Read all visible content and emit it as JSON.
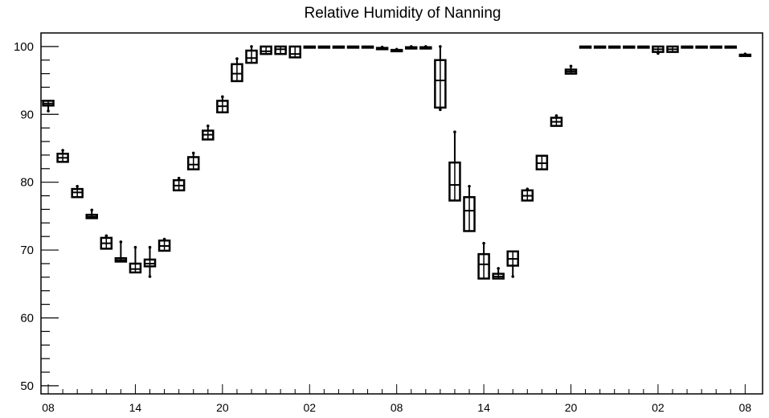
{
  "chart_data": {
    "type": "boxplot",
    "title": "Relative Humidity of Nanning",
    "xlabel": "",
    "ylabel": "",
    "ylim": [
      48.8,
      102
    ],
    "y_ticks": [
      50,
      60,
      70,
      80,
      90,
      100
    ],
    "x_ticks": [
      "08",
      "14",
      "20",
      "02",
      "08",
      "14",
      "20",
      "02",
      "08"
    ],
    "x_tick_hours": [
      0,
      6,
      12,
      18,
      24,
      30,
      36,
      42,
      48
    ],
    "x_range_hours": [
      -0.5,
      49.2
    ],
    "grid": false,
    "series": [
      {
        "hour": 0,
        "min": 90.5,
        "q1": 91.3,
        "median": 91.6,
        "q3": 92.0,
        "max": 92.0
      },
      {
        "hour": 1,
        "min": 83.0,
        "q1": 83.0,
        "median": 83.6,
        "q3": 84.2,
        "max": 84.7
      },
      {
        "hour": 2,
        "min": 77.8,
        "q1": 77.8,
        "median": 78.5,
        "q3": 79.0,
        "max": 79.4
      },
      {
        "hour": 3,
        "min": 74.7,
        "q1": 74.7,
        "median": 74.9,
        "q3": 75.2,
        "max": 75.9
      },
      {
        "hour": 4,
        "min": 70.2,
        "q1": 70.2,
        "median": 71.0,
        "q3": 71.8,
        "max": 72.1
      },
      {
        "hour": 5,
        "min": 68.3,
        "q1": 68.3,
        "median": 68.5,
        "q3": 68.8,
        "max": 71.2
      },
      {
        "hour": 6,
        "min": 66.7,
        "q1": 66.7,
        "median": 67.2,
        "q3": 68.0,
        "max": 70.4
      },
      {
        "hour": 7,
        "min": 66.1,
        "q1": 67.6,
        "median": 68.0,
        "q3": 68.6,
        "max": 70.4
      },
      {
        "hour": 8,
        "min": 69.9,
        "q1": 69.9,
        "median": 70.6,
        "q3": 71.4,
        "max": 71.6
      },
      {
        "hour": 9,
        "min": 78.8,
        "q1": 78.8,
        "median": 79.5,
        "q3": 80.3,
        "max": 80.6
      },
      {
        "hour": 10,
        "min": 81.9,
        "q1": 81.9,
        "median": 82.6,
        "q3": 83.7,
        "max": 84.3
      },
      {
        "hour": 11,
        "min": 86.3,
        "q1": 86.3,
        "median": 87.0,
        "q3": 87.6,
        "max": 88.3
      },
      {
        "hour": 12,
        "min": 90.3,
        "q1": 90.3,
        "median": 91.2,
        "q3": 92.0,
        "max": 92.6
      },
      {
        "hour": 13,
        "min": 94.9,
        "q1": 94.9,
        "median": 96.0,
        "q3": 97.4,
        "max": 98.2
      },
      {
        "hour": 14,
        "min": 97.6,
        "q1": 97.6,
        "median": 98.3,
        "q3": 99.4,
        "max": 100.0
      },
      {
        "hour": 15,
        "min": 98.9,
        "q1": 98.9,
        "median": 99.3,
        "q3": 100.0,
        "max": 100.0
      },
      {
        "hour": 16,
        "min": 98.9,
        "q1": 98.9,
        "median": 99.6,
        "q3": 100.0,
        "max": 100.0
      },
      {
        "hour": 17,
        "min": 98.4,
        "q1": 98.4,
        "median": 98.9,
        "q3": 100.0,
        "max": 100.0
      },
      {
        "hour": 18,
        "min": 100.0,
        "q1": 100.0,
        "median": 100.0,
        "q3": 100.0,
        "max": 100.0
      },
      {
        "hour": 19,
        "min": 100.0,
        "q1": 100.0,
        "median": 100.0,
        "q3": 100.0,
        "max": 100.0
      },
      {
        "hour": 20,
        "min": 100.0,
        "q1": 100.0,
        "median": 100.0,
        "q3": 100.0,
        "max": 100.0
      },
      {
        "hour": 21,
        "min": 100.0,
        "q1": 100.0,
        "median": 100.0,
        "q3": 100.0,
        "max": 100.0
      },
      {
        "hour": 22,
        "min": 100.0,
        "q1": 100.0,
        "median": 100.0,
        "q3": 100.0,
        "max": 100.0
      },
      {
        "hour": 23,
        "min": 99.6,
        "q1": 99.6,
        "median": 99.7,
        "q3": 99.8,
        "max": 99.9
      },
      {
        "hour": 24,
        "min": 99.3,
        "q1": 99.3,
        "median": 99.4,
        "q3": 99.5,
        "max": 99.6
      },
      {
        "hour": 25,
        "min": 99.7,
        "q1": 99.7,
        "median": 99.8,
        "q3": 99.9,
        "max": 100.0
      },
      {
        "hour": 26,
        "min": 99.7,
        "q1": 99.7,
        "median": 99.8,
        "q3": 99.9,
        "max": 100.0
      },
      {
        "hour": 27,
        "min": 90.7,
        "q1": 91.0,
        "median": 95.0,
        "q3": 98.0,
        "max": 100.0
      },
      {
        "hour": 28,
        "min": 77.3,
        "q1": 77.3,
        "median": 79.6,
        "q3": 82.9,
        "max": 87.4
      },
      {
        "hour": 29,
        "min": 72.8,
        "q1": 72.8,
        "median": 75.8,
        "q3": 77.8,
        "max": 79.4
      },
      {
        "hour": 30,
        "min": 65.8,
        "q1": 65.8,
        "median": 67.9,
        "q3": 69.4,
        "max": 71.0
      },
      {
        "hour": 31,
        "min": 65.8,
        "q1": 65.8,
        "median": 66.1,
        "q3": 66.5,
        "max": 67.3
      },
      {
        "hour": 32,
        "min": 66.1,
        "q1": 67.7,
        "median": 68.7,
        "q3": 69.8,
        "max": 69.8
      },
      {
        "hour": 33,
        "min": 77.3,
        "q1": 77.3,
        "median": 78.0,
        "q3": 78.8,
        "max": 79.0
      },
      {
        "hour": 34,
        "min": 81.9,
        "q1": 81.9,
        "median": 82.8,
        "q3": 83.9,
        "max": 83.9
      },
      {
        "hour": 35,
        "min": 88.3,
        "q1": 88.3,
        "median": 88.9,
        "q3": 89.5,
        "max": 89.8
      },
      {
        "hour": 36,
        "min": 96.0,
        "q1": 96.0,
        "median": 96.3,
        "q3": 96.6,
        "max": 97.1
      },
      {
        "hour": 37,
        "min": 100.0,
        "q1": 100.0,
        "median": 100.0,
        "q3": 100.0,
        "max": 100.0
      },
      {
        "hour": 38,
        "min": 100.0,
        "q1": 100.0,
        "median": 100.0,
        "q3": 100.0,
        "max": 100.0
      },
      {
        "hour": 39,
        "min": 100.0,
        "q1": 100.0,
        "median": 100.0,
        "q3": 100.0,
        "max": 100.0
      },
      {
        "hour": 40,
        "min": 100.0,
        "q1": 100.0,
        "median": 100.0,
        "q3": 100.0,
        "max": 100.0
      },
      {
        "hour": 41,
        "min": 100.0,
        "q1": 100.0,
        "median": 100.0,
        "q3": 100.0,
        "max": 100.0
      },
      {
        "hour": 42,
        "min": 99.0,
        "q1": 99.2,
        "median": 99.6,
        "q3": 100.0,
        "max": 100.0
      },
      {
        "hour": 43,
        "min": 99.2,
        "q1": 99.2,
        "median": 99.6,
        "q3": 100.0,
        "max": 100.0
      },
      {
        "hour": 44,
        "min": 100.0,
        "q1": 100.0,
        "median": 100.0,
        "q3": 100.0,
        "max": 100.0
      },
      {
        "hour": 45,
        "min": 100.0,
        "q1": 100.0,
        "median": 100.0,
        "q3": 100.0,
        "max": 100.0
      },
      {
        "hour": 46,
        "min": 100.0,
        "q1": 100.0,
        "median": 100.0,
        "q3": 100.0,
        "max": 100.0
      },
      {
        "hour": 47,
        "min": 100.0,
        "q1": 100.0,
        "median": 100.0,
        "q3": 100.0,
        "max": 100.0
      },
      {
        "hour": 48,
        "min": 98.6,
        "q1": 98.6,
        "median": 98.7,
        "q3": 98.8,
        "max": 98.9
      }
    ],
    "colors": {
      "stroke": "#000000",
      "background": "#ffffff"
    }
  }
}
